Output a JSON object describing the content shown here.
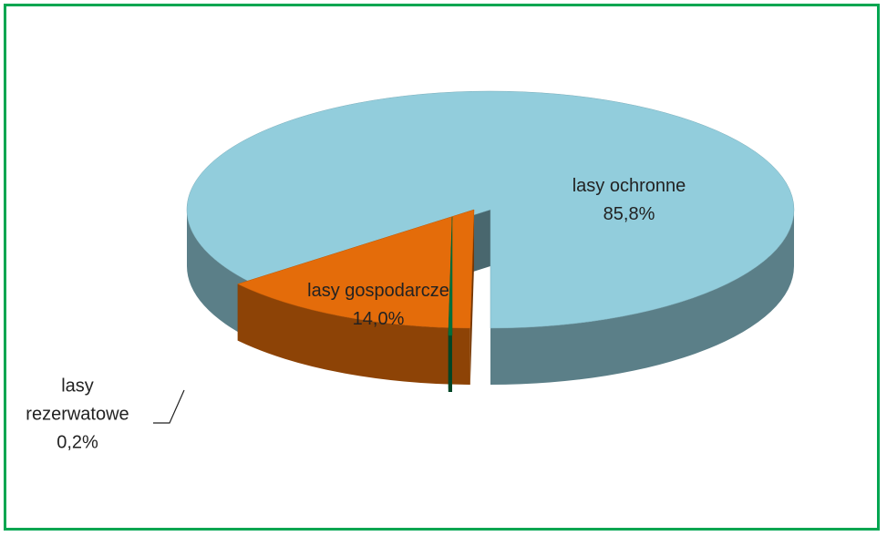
{
  "chart_data": {
    "type": "pie",
    "categories": [
      "lasy ochronne",
      "lasy gospodarcze",
      "lasy rezerwatowe"
    ],
    "values": [
      85.8,
      14.0,
      0.2
    ],
    "value_labels": [
      "85,8%",
      "14,0%",
      "0,2%"
    ],
    "colors": [
      "#92cddc",
      "#e46c0a",
      "#00703c"
    ]
  }
}
